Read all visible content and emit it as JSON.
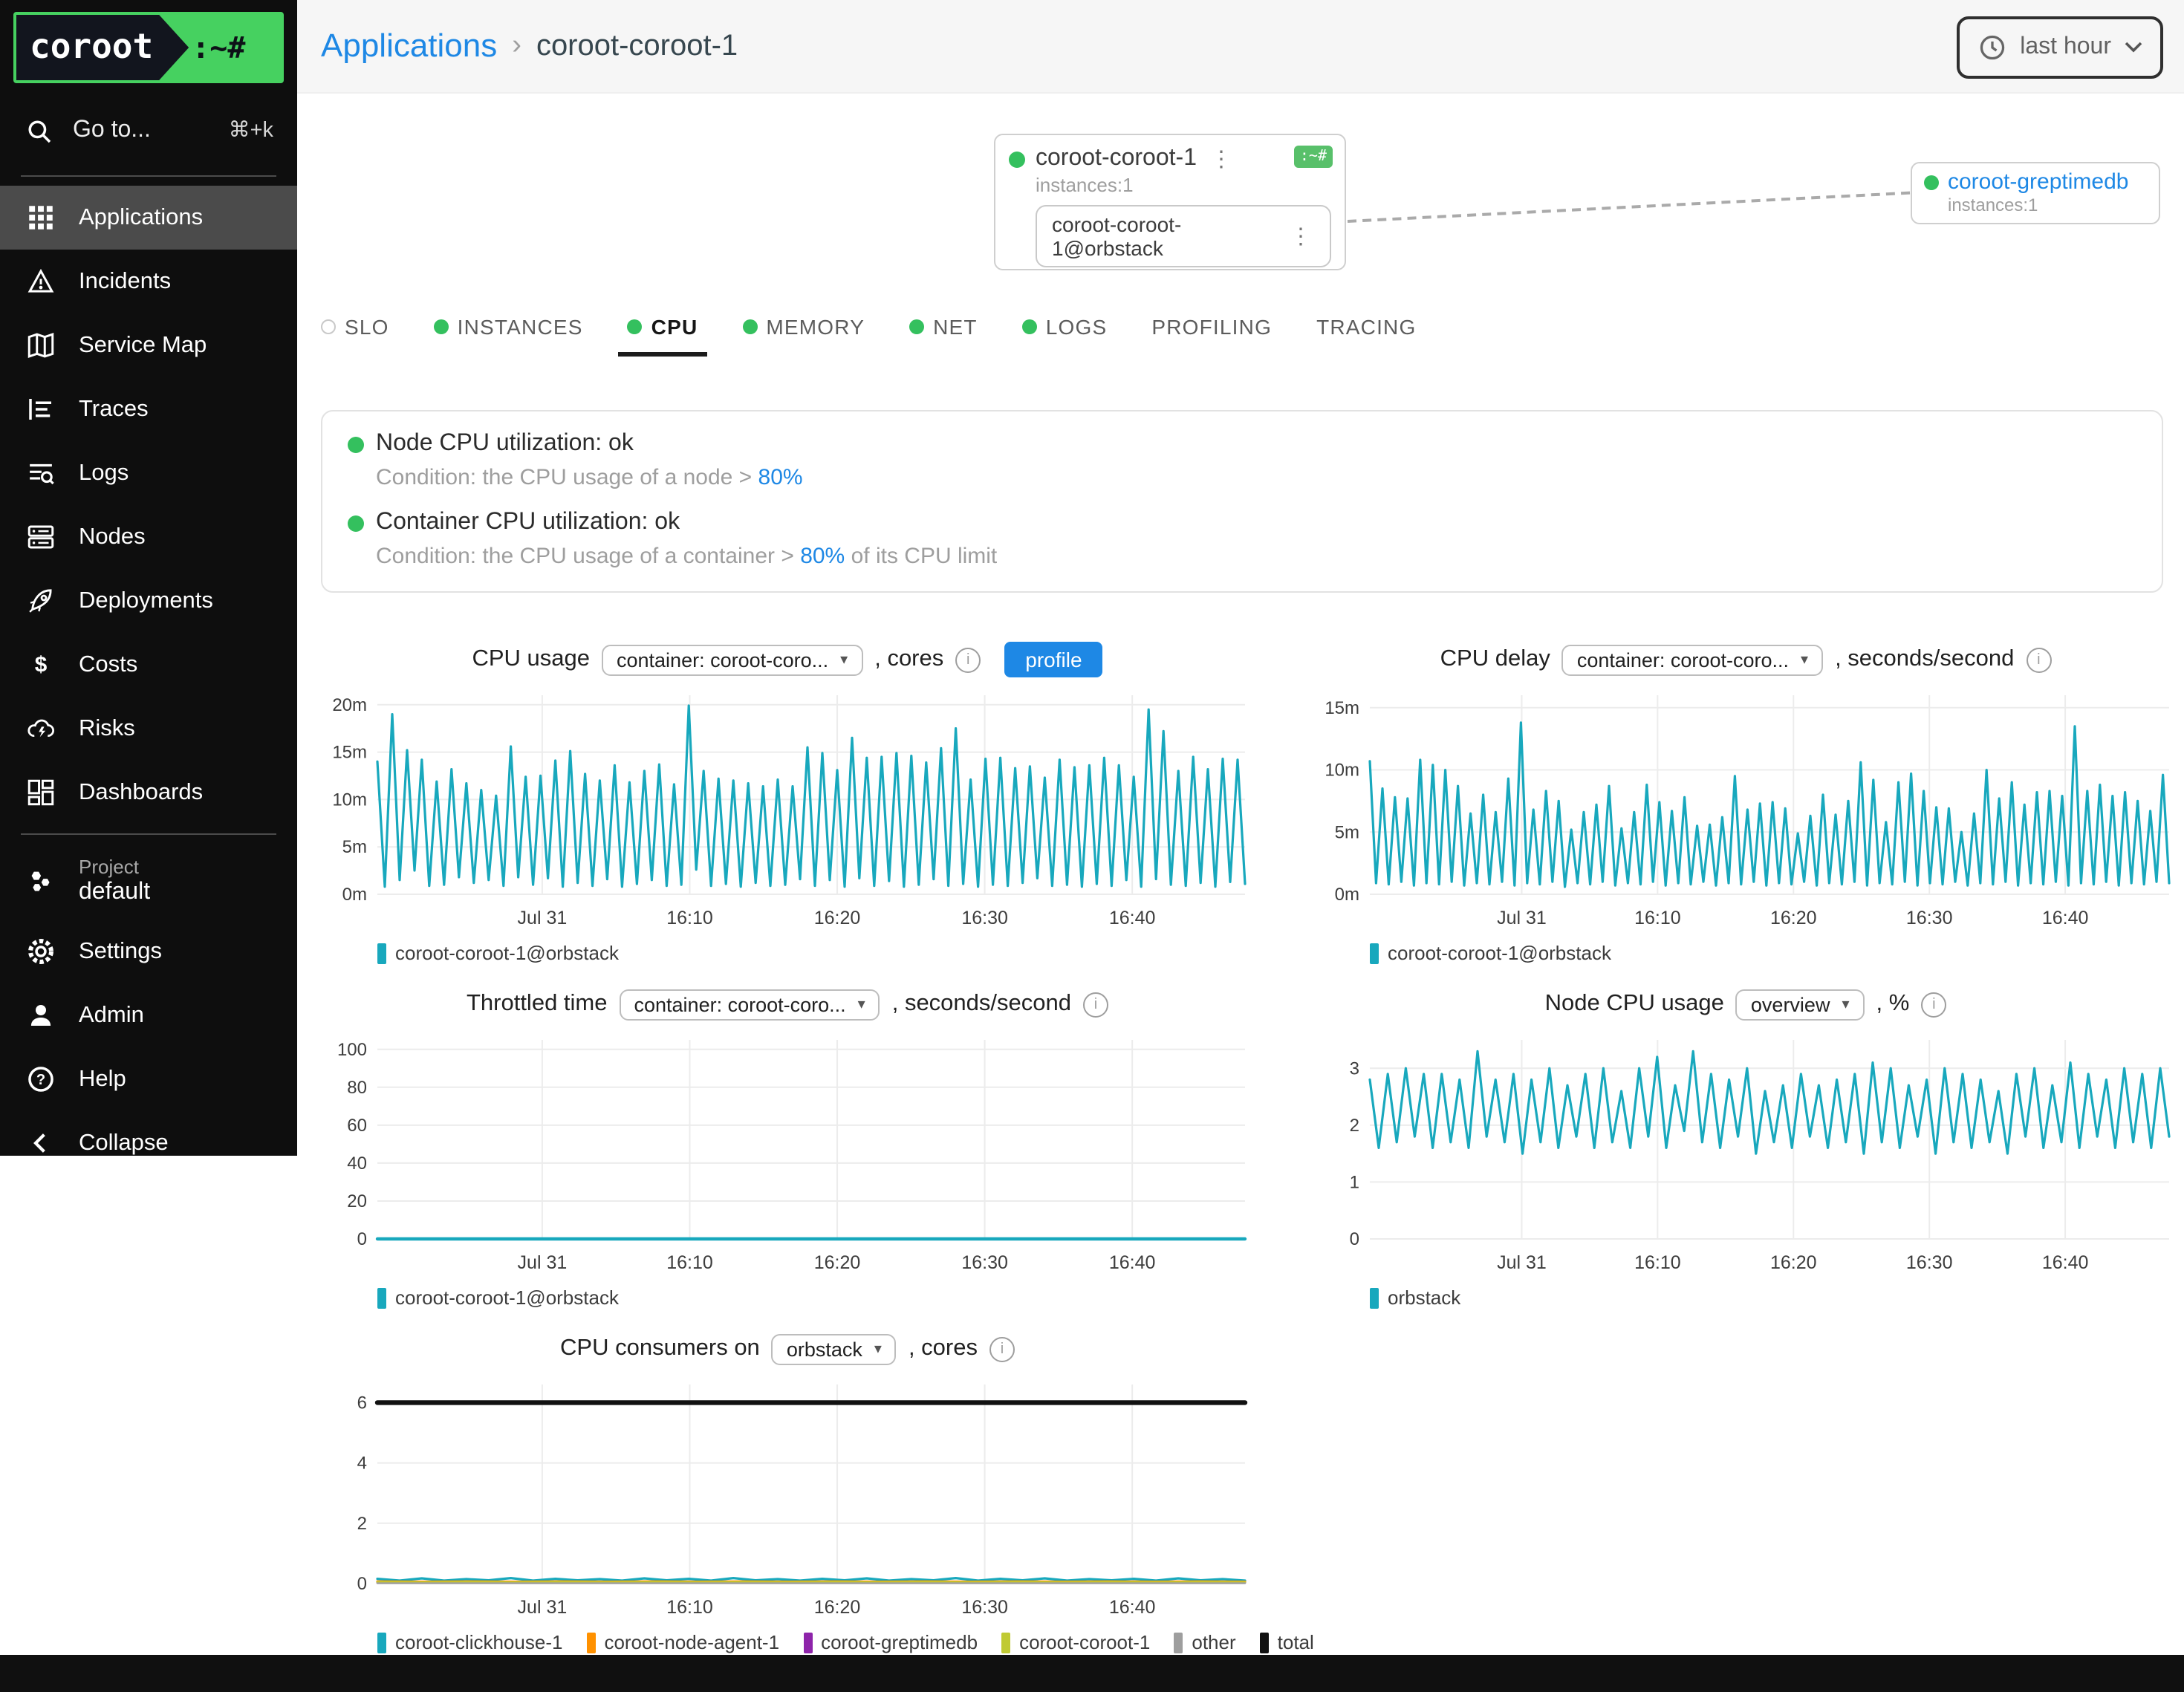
{
  "icons": {
    "kebab": "⋮",
    "caret": "▾",
    "breadcrumb_chevron": "›",
    "info": "i"
  },
  "colors": {
    "accent_blue": "#1e88e5",
    "status_green": "#34c05e",
    "chart_teal": "#18a8bd",
    "logo_green": "#46d160",
    "orange": "#ff9100",
    "purple": "#8e24aa",
    "yellow_green": "#c0ca33",
    "gray": "#9e9e9e",
    "total_black": "#111111"
  },
  "sidebar": {
    "logo": {
      "text": "coroot",
      "suffix": ":~#"
    },
    "search": {
      "label": "Go to...",
      "shortcut": "⌘+k"
    },
    "items": [
      {
        "label": "Applications",
        "active": true
      },
      {
        "label": "Incidents",
        "active": false
      },
      {
        "label": "Service Map",
        "active": false
      },
      {
        "label": "Traces",
        "active": false
      },
      {
        "label": "Logs",
        "active": false
      },
      {
        "label": "Nodes",
        "active": false
      },
      {
        "label": "Deployments",
        "active": false
      },
      {
        "label": "Costs",
        "active": false
      },
      {
        "label": "Risks",
        "active": false
      },
      {
        "label": "Dashboards",
        "active": false
      }
    ],
    "project": {
      "label": "Project",
      "name": "default"
    },
    "footer_items": [
      {
        "label": "Settings"
      },
      {
        "label": "Admin"
      },
      {
        "label": "Help"
      },
      {
        "label": "Collapse"
      }
    ]
  },
  "header": {
    "breadcrumb": {
      "link": "Applications",
      "current": "coroot-coroot-1"
    },
    "time_picker": "last hour"
  },
  "service_map": {
    "app": {
      "name": "coroot-coroot-1",
      "instances_label": "instances:1",
      "badge": ":~#",
      "instance": "coroot-coroot-1@orbstack"
    },
    "upstream": {
      "name": "coroot-greptimedb",
      "instances_label": "instances:1"
    }
  },
  "tabs": [
    {
      "label": "SLO",
      "dot": "empty",
      "active": false
    },
    {
      "label": "INSTANCES",
      "dot": "green",
      "active": false
    },
    {
      "label": "CPU",
      "dot": "green",
      "active": true
    },
    {
      "label": "MEMORY",
      "dot": "green",
      "active": false
    },
    {
      "label": "NET",
      "dot": "green",
      "active": false
    },
    {
      "label": "LOGS",
      "dot": "green",
      "active": false
    },
    {
      "label": "PROFILING",
      "dot": "none",
      "active": false
    },
    {
      "label": "TRACING",
      "dot": "none",
      "active": false
    }
  ],
  "checks": [
    {
      "title": "Node CPU utilization: ok",
      "condition_prefix": "Condition: the CPU usage of a node > ",
      "threshold": "80%",
      "condition_suffix": ""
    },
    {
      "title": "Container CPU utilization: ok",
      "condition_prefix": "Condition: the CPU usage of a container > ",
      "threshold": "80%",
      "condition_suffix": " of its CPU limit"
    }
  ],
  "chart_data": [
    {
      "type": "line",
      "title": "CPU usage",
      "selector": "container: coroot-coro...",
      "suffix": ", cores",
      "profile_label": "profile",
      "ymax": 21,
      "yticks": [
        {
          "v": 0,
          "label": "0m"
        },
        {
          "v": 5,
          "label": "5m"
        },
        {
          "v": 10,
          "label": "10m"
        },
        {
          "v": 15,
          "label": "15m"
        },
        {
          "v": 20,
          "label": "20m"
        }
      ],
      "xticks": [
        {
          "pos": 0.19,
          "label": "Jul 31"
        },
        {
          "pos": 0.36,
          "label": "16:10"
        },
        {
          "pos": 0.53,
          "label": "16:20"
        },
        {
          "pos": 0.7,
          "label": "16:30"
        },
        {
          "pos": 0.87,
          "label": "16:40"
        }
      ],
      "series": [
        {
          "name": "coroot-coroot-1@orbstack",
          "color": "#18a8bd",
          "width": 1.6,
          "values": [
            14,
            0.8,
            19,
            1.5,
            15.2,
            2.5,
            14.2,
            0.9,
            11.9,
            1,
            13.2,
            1.8,
            11.7,
            1.2,
            11,
            1.5,
            10.4,
            0.9,
            15.6,
            1.8,
            12.4,
            1,
            12.5,
            1.7,
            14.1,
            0.8,
            15.1,
            1.2,
            12.7,
            0.9,
            12,
            1.6,
            13.6,
            0.8,
            11.8,
            1.1,
            13,
            1.5,
            13.7,
            0.9,
            11.6,
            1,
            19.9,
            2.6,
            13,
            0.9,
            12.2,
            1.1,
            12,
            0.8,
            11.7,
            1.2,
            11.4,
            0.9,
            12.1,
            1,
            11.4,
            1.6,
            15.5,
            0.9,
            14.9,
            1.5,
            13.1,
            0.8,
            16.5,
            1.7,
            14.4,
            0.9,
            14.5,
            1.4,
            14.9,
            0.8,
            14.6,
            1,
            13.9,
            1.6,
            15.4,
            0.9,
            17.5,
            1.1,
            12.1,
            0.8,
            14.3,
            1,
            14.4,
            0.9,
            13.3,
            1.2,
            13.5,
            1.7,
            12.3,
            0.9,
            14.2,
            1,
            13.4,
            0.8,
            13.6,
            1.1,
            14.4,
            0.9,
            13.6,
            1.5,
            12.4,
            0.8,
            19.5,
            1.6,
            17.2,
            1,
            13,
            0.9,
            14.5,
            1.2,
            13.2,
            0.8,
            14.3,
            1.3,
            14.2,
            1.1
          ]
        }
      ],
      "legend": [
        {
          "label": "coroot-coroot-1@orbstack",
          "color": "#18a8bd"
        }
      ]
    },
    {
      "type": "line",
      "title": "CPU delay",
      "selector": "container: coroot-coro...",
      "suffix": ", seconds/second",
      "ymax": 16,
      "yticks": [
        {
          "v": 0,
          "label": "0m"
        },
        {
          "v": 5,
          "label": "5m"
        },
        {
          "v": 10,
          "label": "10m"
        },
        {
          "v": 15,
          "label": "15m"
        }
      ],
      "xticks": [
        {
          "pos": 0.19,
          "label": "Jul 31"
        },
        {
          "pos": 0.36,
          "label": "16:10"
        },
        {
          "pos": 0.53,
          "label": "16:20"
        },
        {
          "pos": 0.7,
          "label": "16:30"
        },
        {
          "pos": 0.87,
          "label": "16:40"
        }
      ],
      "series": [
        {
          "name": "coroot-coroot-1@orbstack",
          "color": "#18a8bd",
          "width": 1.6,
          "values": [
            10.7,
            0.9,
            8.5,
            0.8,
            7.8,
            1,
            7.7,
            0.7,
            10.8,
            0.9,
            10.4,
            0.8,
            10,
            1,
            8.7,
            0.7,
            6.5,
            0.9,
            8,
            0.8,
            6.6,
            1,
            9.3,
            0.7,
            13.8,
            0.9,
            6.8,
            0.8,
            8.3,
            1,
            7.5,
            0.6,
            5.2,
            0.9,
            6.6,
            0.8,
            7.2,
            1,
            8.7,
            0.7,
            5.3,
            0.9,
            6.6,
            0.8,
            8.8,
            1,
            7.4,
            0.7,
            6.7,
            0.9,
            7.8,
            0.8,
            5.5,
            1,
            5.6,
            0.7,
            6.2,
            0.9,
            9.5,
            0.8,
            6.8,
            1,
            7.3,
            0.7,
            7.4,
            0.9,
            6.9,
            0.8,
            4.9,
            1,
            6.3,
            0.7,
            8,
            0.9,
            6.4,
            0.8,
            7.5,
            1,
            10.6,
            0.7,
            9.2,
            0.9,
            5.8,
            0.8,
            9,
            1,
            9.7,
            0.7,
            8.3,
            0.9,
            7,
            0.8,
            6.9,
            1,
            5,
            0.7,
            6.5,
            0.9,
            10,
            0.8,
            7.7,
            1,
            9,
            0.7,
            7.2,
            0.9,
            8.2,
            0.8,
            8.3,
            1,
            7.9,
            0.7,
            13.5,
            0.9,
            8.3,
            0.8,
            8.8,
            1,
            7.9,
            0.7,
            8.2,
            0.9,
            7.5,
            0.8,
            6.7,
            1,
            9.6,
            0.9
          ]
        }
      ],
      "legend": [
        {
          "label": "coroot-coroot-1@orbstack",
          "color": "#18a8bd"
        }
      ]
    },
    {
      "type": "line",
      "title": "Throttled time",
      "selector": "container: coroot-coro...",
      "suffix": ", seconds/second",
      "ymax": 105,
      "yticks": [
        {
          "v": 0,
          "label": "0"
        },
        {
          "v": 20,
          "label": "20"
        },
        {
          "v": 40,
          "label": "40"
        },
        {
          "v": 60,
          "label": "60"
        },
        {
          "v": 80,
          "label": "80"
        },
        {
          "v": 100,
          "label": "100"
        }
      ],
      "xticks": [
        {
          "pos": 0.19,
          "label": "Jul 31"
        },
        {
          "pos": 0.36,
          "label": "16:10"
        },
        {
          "pos": 0.53,
          "label": "16:20"
        },
        {
          "pos": 0.7,
          "label": "16:30"
        },
        {
          "pos": 0.87,
          "label": "16:40"
        }
      ],
      "series": [
        {
          "name": "coroot-coroot-1@orbstack",
          "color": "#18a8bd",
          "width": 2.2,
          "values": [
            0,
            0
          ]
        }
      ],
      "legend": [
        {
          "label": "coroot-coroot-1@orbstack",
          "color": "#18a8bd"
        }
      ]
    },
    {
      "type": "line",
      "title": "Node CPU usage",
      "selector": "overview",
      "suffix": ", %",
      "ymax": 3.5,
      "yticks": [
        {
          "v": 0,
          "label": "0"
        },
        {
          "v": 1,
          "label": "1"
        },
        {
          "v": 2,
          "label": "2"
        },
        {
          "v": 3,
          "label": "3"
        }
      ],
      "xticks": [
        {
          "pos": 0.19,
          "label": "Jul 31"
        },
        {
          "pos": 0.36,
          "label": "16:10"
        },
        {
          "pos": 0.53,
          "label": "16:20"
        },
        {
          "pos": 0.7,
          "label": "16:30"
        },
        {
          "pos": 0.87,
          "label": "16:40"
        }
      ],
      "series": [
        {
          "name": "orbstack",
          "color": "#18a8bd",
          "width": 1.6,
          "values": [
            2.8,
            1.6,
            2.9,
            1.7,
            3,
            1.8,
            2.9,
            1.6,
            2.9,
            1.7,
            2.8,
            1.6,
            3.3,
            1.8,
            2.8,
            1.7,
            2.9,
            1.5,
            2.8,
            1.7,
            3,
            1.6,
            2.7,
            1.8,
            2.9,
            1.6,
            3,
            1.7,
            2.6,
            1.6,
            3,
            1.8,
            3.2,
            1.6,
            2.7,
            1.9,
            3.3,
            1.7,
            2.9,
            1.6,
            2.8,
            1.8,
            3,
            1.5,
            2.6,
            1.7,
            2.7,
            1.6,
            2.9,
            1.8,
            2.7,
            1.6,
            2.8,
            1.7,
            2.9,
            1.5,
            3.1,
            1.7,
            3,
            1.6,
            2.7,
            1.8,
            2.8,
            1.5,
            3,
            1.7,
            2.9,
            1.6,
            2.8,
            1.7,
            2.6,
            1.5,
            2.9,
            1.8,
            3,
            1.6,
            2.7,
            1.7,
            3.1,
            1.6,
            2.9,
            1.8,
            2.8,
            1.6,
            3,
            1.7,
            2.9,
            1.6,
            3,
            1.8
          ]
        }
      ],
      "legend": [
        {
          "label": "orbstack",
          "color": "#18a8bd"
        }
      ]
    },
    {
      "type": "line",
      "title": "CPU consumers on",
      "selector": "orbstack",
      "suffix": ", cores",
      "ymax": 6.6,
      "yticks": [
        {
          "v": 0,
          "label": "0"
        },
        {
          "v": 2,
          "label": "2"
        },
        {
          "v": 4,
          "label": "4"
        },
        {
          "v": 6,
          "label": "6"
        }
      ],
      "xticks": [
        {
          "pos": 0.19,
          "label": "Jul 31"
        },
        {
          "pos": 0.36,
          "label": "16:10"
        },
        {
          "pos": 0.53,
          "label": "16:20"
        },
        {
          "pos": 0.7,
          "label": "16:30"
        },
        {
          "pos": 0.87,
          "label": "16:40"
        }
      ],
      "series": [
        {
          "name": "coroot-clickhouse-1",
          "color": "#18a8bd",
          "width": 1.6,
          "values": [
            0.16,
            0.1,
            0.17,
            0.1,
            0.15,
            0.11,
            0.18,
            0.1,
            0.16,
            0.11,
            0.15,
            0.1,
            0.17,
            0.11,
            0.16,
            0.1,
            0.18,
            0.11,
            0.15,
            0.1,
            0.16,
            0.11,
            0.17,
            0.1,
            0.15,
            0.11,
            0.18,
            0.1,
            0.16,
            0.11,
            0.17,
            0.1,
            0.15,
            0.11,
            0.16,
            0.1,
            0.17,
            0.11,
            0.15,
            0.1
          ]
        },
        {
          "name": "coroot-node-agent-1",
          "color": "#ff9100",
          "width": 1.6,
          "values": [
            0.07,
            0.06,
            0.07,
            0.06,
            0.07,
            0.06,
            0.07,
            0.06,
            0.07,
            0.06,
            0.07,
            0.06,
            0.07,
            0.06,
            0.07,
            0.06,
            0.07,
            0.06,
            0.07,
            0.06
          ]
        },
        {
          "name": "coroot-greptimedb",
          "color": "#8e24aa",
          "width": 1.4,
          "values": [
            0.03,
            0.03,
            0.04,
            0.03,
            0.03,
            0.04,
            0.03,
            0.03,
            0.04,
            0.03,
            0.03,
            0.04,
            0.03,
            0.03,
            0.04,
            0.03,
            0.03,
            0.04,
            0.03,
            0.03
          ]
        },
        {
          "name": "coroot-coroot-1",
          "color": "#c0ca33",
          "width": 1.4,
          "values": [
            0.05,
            0.04,
            0.05,
            0.04,
            0.05,
            0.04,
            0.05,
            0.04,
            0.05,
            0.04,
            0.05,
            0.04,
            0.05,
            0.04,
            0.05,
            0.04,
            0.05,
            0.04,
            0.05,
            0.04
          ]
        },
        {
          "name": "other",
          "color": "#9e9e9e",
          "width": 1.2,
          "values": [
            0.01,
            0.01
          ]
        },
        {
          "name": "total",
          "color": "#111111",
          "width": 3.2,
          "values": [
            6,
            6
          ]
        }
      ],
      "legend": [
        {
          "label": "coroot-clickhouse-1",
          "color": "#18a8bd"
        },
        {
          "label": "coroot-node-agent-1",
          "color": "#ff9100"
        },
        {
          "label": "coroot-greptimedb",
          "color": "#8e24aa"
        },
        {
          "label": "coroot-coroot-1",
          "color": "#c0ca33"
        },
        {
          "label": "other",
          "color": "#9e9e9e"
        },
        {
          "label": "total",
          "color": "#111111"
        }
      ]
    }
  ]
}
